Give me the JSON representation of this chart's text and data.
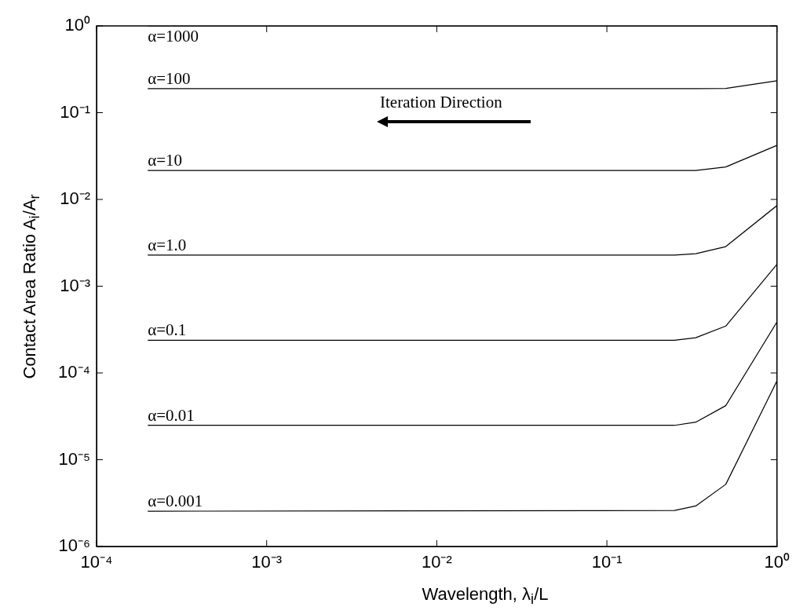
{
  "chart_data": {
    "type": "line",
    "xlabel": "Wavelength, λ$_{i}$/L",
    "ylabel": "Contact Area Ratio A$_{i}$/A$_{r}$",
    "x": [
      0.0002,
      0.25,
      0.333,
      0.5,
      1
    ],
    "series": [
      {
        "name": "α=1000",
        "color": "#000000",
        "values": [
          1,
          1,
          1,
          1,
          1
        ]
      },
      {
        "name": "α=100",
        "color": "#000000",
        "values": [
          0.189,
          0.189,
          0.189,
          0.19,
          0.233
        ]
      },
      {
        "name": "α=10",
        "color": "#000000",
        "values": [
          0.0216,
          0.0216,
          0.0216,
          0.0237,
          0.042
        ]
      },
      {
        "name": "α=1.0",
        "color": "#000000",
        "values": [
          0.00228,
          0.00228,
          0.00237,
          0.00286,
          0.0085
        ]
      },
      {
        "name": "α=0.1",
        "color": "#000000",
        "values": [
          0.000238,
          0.000238,
          0.000255,
          0.000347,
          0.00179
        ]
      },
      {
        "name": "α=0.01",
        "color": "#000000",
        "values": [
          2.49e-05,
          2.49e-05,
          2.71e-05,
          4.2e-05,
          0.000387
        ]
      },
      {
        "name": "α=0.001",
        "color": "#000000",
        "values": [
          2.55e-06,
          2.6e-06,
          2.93e-06,
          5.2e-06,
          8.1e-05
        ]
      }
    ],
    "log": "xy",
    "xlim": [
      0.0001,
      1
    ],
    "ylim": [
      1e-06,
      1
    ],
    "xticks": [
      {
        "value": 0.0001,
        "label": "10⁻⁴"
      },
      {
        "value": 0.001,
        "label": "10⁻³"
      },
      {
        "value": 0.01,
        "label": "10⁻²"
      },
      {
        "value": 0.1,
        "label": "10⁻¹"
      },
      {
        "value": 1,
        "label": "10⁰"
      }
    ],
    "yticks": [
      {
        "value": 1e-06,
        "label": "10⁻⁶"
      },
      {
        "value": 1e-05,
        "label": "10⁻⁵"
      },
      {
        "value": 0.0001,
        "label": "10⁻⁴"
      },
      {
        "value": 0.001,
        "label": "10⁻³"
      },
      {
        "value": 0.01,
        "label": "10⁻²"
      },
      {
        "value": 0.1,
        "label": "10⁻¹"
      },
      {
        "value": 1,
        "label": "10⁰"
      }
    ],
    "grid": false,
    "legend": false,
    "marker": "none",
    "line_style": "solid",
    "annotations": [
      "Iteration Direction"
    ]
  }
}
